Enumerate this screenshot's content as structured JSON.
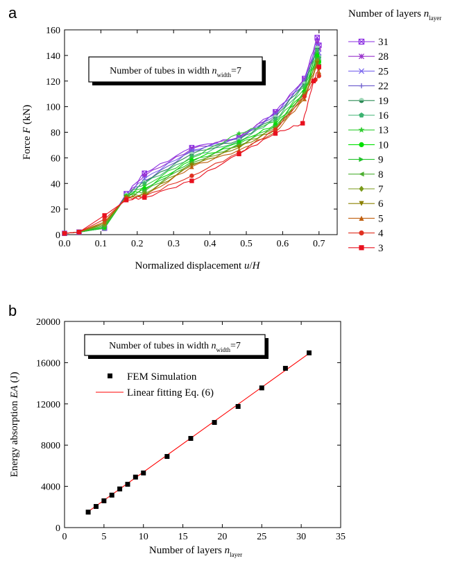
{
  "chart_data": [
    {
      "panel_label": "a",
      "type": "line",
      "xlabel": {
        "pre": "Normalized displacement ",
        "var": "u",
        "post": "/",
        "var2": "H"
      },
      "ylabel": {
        "pre": "Force ",
        "var": "F",
        "post": " (kN)"
      },
      "xlim": [
        0,
        0.75
      ],
      "ylim": [
        0,
        160
      ],
      "xticks": [
        "0.0",
        "0.1",
        "0.2",
        "0.3",
        "0.4",
        "0.5",
        "0.6",
        "0.7"
      ],
      "yticks": [
        "0",
        "20",
        "40",
        "60",
        "80",
        "100",
        "120",
        "140",
        "160"
      ],
      "annotation": {
        "pre": "Number of tubes in width ",
        "var": "n",
        "sub": "width",
        "post": "=7"
      },
      "legend_title": {
        "pre": "Number of layers ",
        "var": "n",
        "sub": "layer"
      },
      "legend_position": "right-outside",
      "series": [
        {
          "name": "31",
          "color": "#8a2be2",
          "marker": "square-x",
          "x": [
            0,
            0.04,
            0.11,
            0.17,
            0.22,
            0.35,
            0.48,
            0.58,
            0.66,
            0.695,
            0.7
          ],
          "y": [
            1,
            2,
            5,
            32,
            48,
            68,
            76,
            96,
            122,
            154,
            148
          ]
        },
        {
          "name": "28",
          "color": "#9932cc",
          "marker": "star",
          "x": [
            0,
            0.04,
            0.11,
            0.17,
            0.22,
            0.35,
            0.48,
            0.58,
            0.66,
            0.695,
            0.7
          ],
          "y": [
            1,
            2,
            5,
            31,
            46,
            67,
            76,
            95,
            121,
            150,
            145
          ]
        },
        {
          "name": "25",
          "color": "#7b68ee",
          "marker": "x",
          "x": [
            0,
            0.04,
            0.11,
            0.17,
            0.22,
            0.35,
            0.48,
            0.58,
            0.66,
            0.695,
            0.7
          ],
          "y": [
            1,
            2,
            5,
            31,
            44,
            66,
            75,
            94,
            120,
            148,
            142
          ]
        },
        {
          "name": "22",
          "color": "#6a5acd",
          "marker": "plus",
          "x": [
            0,
            0.04,
            0.11,
            0.17,
            0.22,
            0.35,
            0.48,
            0.58,
            0.66,
            0.695,
            0.7
          ],
          "y": [
            1,
            2,
            5,
            31,
            42,
            65,
            75,
            93,
            119,
            146,
            140
          ]
        },
        {
          "name": "19",
          "color": "#2e8b57",
          "marker": "circle-half",
          "x": [
            0,
            0.04,
            0.11,
            0.17,
            0.22,
            0.35,
            0.48,
            0.58,
            0.66,
            0.695,
            0.7
          ],
          "y": [
            1,
            2,
            5,
            31,
            41,
            63,
            74,
            92,
            118,
            146,
            139
          ]
        },
        {
          "name": "16",
          "color": "#3cb371",
          "marker": "pentagon",
          "x": [
            0,
            0.04,
            0.11,
            0.17,
            0.22,
            0.35,
            0.48,
            0.58,
            0.66,
            0.695,
            0.7
          ],
          "y": [
            1,
            2,
            5,
            30,
            40,
            61,
            73,
            90,
            116,
            144,
            138
          ]
        },
        {
          "name": "13",
          "color": "#32cd32",
          "marker": "star5",
          "x": [
            0,
            0.04,
            0.11,
            0.17,
            0.22,
            0.35,
            0.48,
            0.58,
            0.66,
            0.695,
            0.7
          ],
          "y": [
            1,
            2,
            5,
            30,
            38,
            60,
            79,
            88,
            114,
            142,
            136
          ]
        },
        {
          "name": "10",
          "color": "#00e000",
          "marker": "circle",
          "x": [
            0,
            0.04,
            0.11,
            0.17,
            0.22,
            0.35,
            0.48,
            0.58,
            0.66,
            0.695,
            0.7
          ],
          "y": [
            1,
            2,
            6,
            30,
            36,
            58,
            72,
            86,
            112,
            140,
            135
          ]
        },
        {
          "name": "9",
          "color": "#22c22a",
          "marker": "triangle-right",
          "x": [
            0,
            0.04,
            0.11,
            0.17,
            0.22,
            0.35,
            0.48,
            0.58,
            0.66,
            0.695,
            0.7
          ],
          "y": [
            1,
            2,
            6,
            30,
            35,
            57,
            71,
            85,
            111,
            138,
            133
          ]
        },
        {
          "name": "8",
          "color": "#4caf30",
          "marker": "triangle-left",
          "x": [
            0,
            0.04,
            0.11,
            0.17,
            0.22,
            0.35,
            0.48,
            0.58,
            0.66,
            0.695,
            0.7
          ],
          "y": [
            1,
            2,
            7,
            30,
            34,
            56,
            70,
            84,
            110,
            137,
            132
          ]
        },
        {
          "name": "7",
          "color": "#7a9a1a",
          "marker": "diamond",
          "x": [
            0,
            0.04,
            0.11,
            0.17,
            0.22,
            0.35,
            0.48,
            0.58,
            0.66,
            0.695,
            0.7
          ],
          "y": [
            1,
            2,
            8,
            29,
            32,
            55,
            69,
            83,
            110,
            136,
            130
          ]
        },
        {
          "name": "6",
          "color": "#8b8000",
          "marker": "triangle-down",
          "x": [
            0,
            0.04,
            0.11,
            0.17,
            0.22,
            0.35,
            0.48,
            0.58,
            0.66,
            0.695,
            0.7
          ],
          "y": [
            1,
            2,
            9,
            29,
            31,
            54,
            68,
            82,
            108,
            134,
            129
          ]
        },
        {
          "name": "5",
          "color": "#c06010",
          "marker": "triangle-up",
          "x": [
            0,
            0.04,
            0.11,
            0.17,
            0.22,
            0.35,
            0.48,
            0.58,
            0.66,
            0.695,
            0.7
          ],
          "y": [
            1,
            2,
            10,
            29,
            30,
            53,
            66,
            80,
            106,
            132,
            127
          ]
        },
        {
          "name": "4",
          "color": "#e03020",
          "marker": "circle",
          "x": [
            0,
            0.04,
            0.11,
            0.17,
            0.22,
            0.35,
            0.48,
            0.58,
            0.66,
            0.69,
            0.7
          ],
          "y": [
            1,
            2,
            12,
            28,
            30,
            46,
            64,
            82,
            108,
            121,
            124
          ]
        },
        {
          "name": "3",
          "color": "#e8101e",
          "marker": "square",
          "x": [
            0,
            0.04,
            0.11,
            0.17,
            0.22,
            0.35,
            0.48,
            0.58,
            0.655,
            0.685,
            0.7
          ],
          "y": [
            1,
            2,
            15,
            27,
            29,
            42,
            63,
            79,
            87,
            120,
            131
          ]
        }
      ]
    },
    {
      "panel_label": "b",
      "type": "scatter",
      "xlabel": {
        "pre": "Number of layers ",
        "var": "n",
        "sub": "layer"
      },
      "ylabel": {
        "pre": "Energy absorption ",
        "var": "EA",
        "post": " (J)"
      },
      "xlim": [
        0,
        35
      ],
      "ylim": [
        0,
        20000
      ],
      "xticks": [
        "0",
        "5",
        "10",
        "15",
        "20",
        "25",
        "30",
        "35"
      ],
      "yticks": [
        "0",
        "4000",
        "8000",
        "12000",
        "16000",
        "20000"
      ],
      "annotation": {
        "pre": "Number of tubes in width ",
        "var": "n",
        "sub": "width",
        "post": "=7"
      },
      "legend": [
        "FEM Simulation",
        "Linear fitting Eq. (6)"
      ],
      "legend_position": "top-left",
      "series": [
        {
          "name": "FEM Simulation",
          "type": "scatter",
          "color": "#000000",
          "x": [
            3,
            4,
            5,
            6,
            7,
            8,
            9,
            10,
            13,
            16,
            19,
            22,
            25,
            28,
            31
          ],
          "y": [
            1500,
            2050,
            2600,
            3150,
            3750,
            4200,
            4900,
            5300,
            6900,
            8650,
            10200,
            11750,
            13550,
            15450,
            16950
          ]
        },
        {
          "name": "Linear fitting Eq. (6)",
          "type": "line",
          "color": "#ff0000",
          "x": [
            3,
            31
          ],
          "y": [
            1550,
            16900
          ]
        }
      ]
    }
  ]
}
